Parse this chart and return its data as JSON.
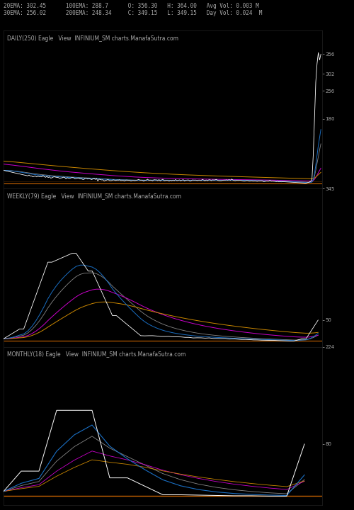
{
  "background_color": "#000000",
  "text_color": "#aaaaaa",
  "header_line1": "20EMA: 302.45      100EMA: 288.7      O: 356.30   H: 364.00   Avg Vol: 0.003 M",
  "header_line2": "30EMA: 256.02      200EMA: 248.34     C: 349.15   L: 349.15   Day Vol: 0.024  M",
  "panel1_label": "DAILY(250) Eagle   View  INFINIUM_SM charts.ManafaSutra.com",
  "panel2_label": "WEEKLY(79) Eagle   View  INFINIUM_SM charts.ManafaSutra.com",
  "panel3_label": "MONTHLY(18) Eagle   View  INFINIUM_SM charts.ManafaSutra.com",
  "fig_width": 5.0,
  "fig_height": 7.2
}
